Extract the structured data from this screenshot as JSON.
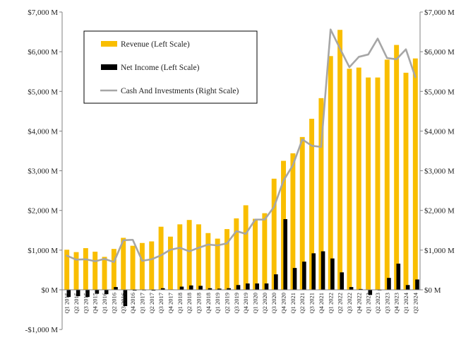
{
  "chart_data": {
    "type": "bar+line",
    "title": "",
    "colors": {
      "revenue": "#F9BE00",
      "net_income": "#000000",
      "cash": "#A6A6A6",
      "axis": "#808080"
    },
    "left_axis": {
      "range": [
        -1000,
        7000
      ],
      "ticks": [
        -1000,
        0,
        1000,
        2000,
        3000,
        4000,
        5000,
        6000,
        7000
      ],
      "tick_labels": [
        "-$1,000 M",
        "$0 M",
        "$1,000 M",
        "$2,000 M",
        "$3,000 M",
        "$4,000 M",
        "$5,000 M",
        "$6,000 M",
        "$7,000 M"
      ]
    },
    "right_axis": {
      "range": [
        0,
        7000
      ],
      "ticks": [
        0,
        1000,
        2000,
        3000,
        4000,
        5000,
        6000,
        7000
      ],
      "tick_labels": [
        "$0 M",
        "$1,000 M",
        "$2,000 M",
        "$3,000 M",
        "$4,000 M",
        "$5,000 M",
        "$6,000 M",
        "$7,000 M"
      ]
    },
    "legend": [
      {
        "key": "revenue",
        "label": "Revenue (Left Scale)",
        "swatch": "bar"
      },
      {
        "key": "net_income",
        "label": "Net Income (Left Scale)",
        "swatch": "bar"
      },
      {
        "key": "cash",
        "label": "Cash And Investments (Right Scale)",
        "swatch": "line"
      }
    ],
    "categories": [
      "Q1 2015",
      "Q2 2015",
      "Q3 2015",
      "Q4 2015",
      "Q1 2016",
      "Q2 2016",
      "Q3 2016",
      "Q4 2016",
      "Q1 2017",
      "Q2 2017",
      "Q3 2017",
      "Q4 2017",
      "Q1 2018",
      "Q2 2018",
      "Q3 2018",
      "Q4 2018",
      "Q1 2019",
      "Q2 2019",
      "Q3 2019",
      "Q4 2019",
      "Q1 2020",
      "Q2 2020",
      "Q3 2020",
      "Q4 2020",
      "Q1 2021",
      "Q2 2021",
      "Q3 2021",
      "Q4 2021",
      "Q1 2022",
      "Q2 2022",
      "Q3 2022",
      "Q4 2022",
      "Q1 2023",
      "Q2 2023",
      "Q3 2023",
      "Q4 2023",
      "Q1 2024",
      "Q2 2024"
    ],
    "series": [
      {
        "name": "Revenue",
        "key": "revenue",
        "axis": "left",
        "values": [
          1010,
          950,
          1050,
          960,
          830,
          1030,
          1310,
          1110,
          1180,
          1220,
          1590,
          1340,
          1650,
          1760,
          1650,
          1430,
          1290,
          1530,
          1800,
          2130,
          1790,
          1930,
          2800,
          3250,
          3440,
          3850,
          4310,
          4830,
          5890,
          6550,
          5570,
          5600,
          5350,
          5350,
          5800,
          6170,
          5470,
          5830
        ]
      },
      {
        "name": "Net Income",
        "key": "net_income",
        "axis": "left",
        "values": [
          -180,
          -160,
          -180,
          -100,
          -110,
          70,
          -410,
          -20,
          -10,
          -20,
          40,
          10,
          80,
          110,
          100,
          40,
          30,
          40,
          120,
          160,
          160,
          160,
          390,
          1780,
          550,
          710,
          920,
          970,
          790,
          440,
          70,
          20,
          -130,
          0,
          300,
          660,
          120,
          260
        ]
      },
      {
        "name": "Cash And Investments",
        "key": "cash",
        "axis": "right",
        "values": [
          860,
          760,
          770,
          720,
          780,
          700,
          1250,
          1260,
          730,
          770,
          870,
          1010,
          1060,
          970,
          1060,
          1140,
          1120,
          1170,
          1480,
          1410,
          1770,
          1770,
          2090,
          2750,
          3140,
          3790,
          3630,
          3600,
          6560,
          6080,
          5610,
          5870,
          5930,
          6330,
          5840,
          5810,
          6060,
          5360
        ]
      }
    ]
  }
}
